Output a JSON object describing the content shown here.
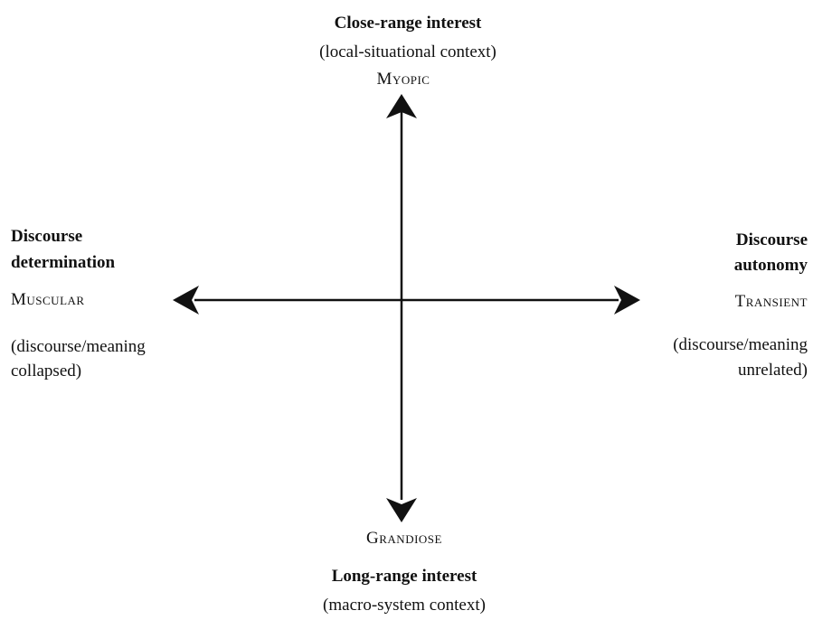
{
  "top": {
    "title": "Close-range interest",
    "context": "(local-situational context)",
    "pole": "Myopic"
  },
  "bottom": {
    "pole": "Grandiose",
    "title": "Long-range interest",
    "context": "(macro-system context)"
  },
  "left": {
    "title_line1": "Discourse",
    "title_line2": "determination",
    "pole": "Muscular",
    "note_line1": "(discourse/meaning",
    "note_line2": "collapsed)"
  },
  "right": {
    "title_line1": "Discourse",
    "title_line2": "autonomy",
    "pole": "Transient",
    "note_line1": "(discourse/meaning",
    "note_line2": "unrelated)"
  },
  "colors": {
    "ink": "#111111",
    "background": "#ffffff"
  }
}
